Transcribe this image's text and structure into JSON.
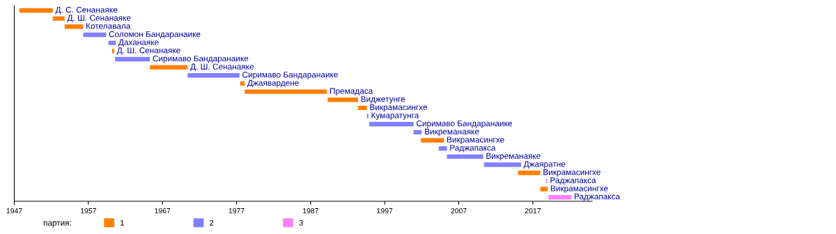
{
  "chart_data": {
    "type": "bar",
    "orientation": "horizontal",
    "categories": [
      "Д. С. Сенанаяке",
      "Д. Ш. Сенанаяке",
      "Котелавала",
      "Соломон Бандаранаике",
      "Даханаяке",
      "Д. Ш. Сенанаяке",
      "Сиримаво Бандаранаике",
      "Д. Ш. Сенанаяке",
      "Сиримаво Бандаранаике",
      "Джаявардене",
      "Премадаса",
      "Виджетунге",
      "Викрамасингхе",
      "Кумаратунга",
      "Сиримаво Бандаранаике",
      "Викреманаяке",
      "Викрамасингхе",
      "Раджапакса",
      "Викреманаяке",
      "Джаяратне",
      "Викрамасингхе",
      "Раджапакса",
      "Викрамасингхе",
      "Раджапакса"
    ],
    "series": [
      {
        "name": "1",
        "color": "#ff7f00",
        "base": [
          1947.7,
          1952.2,
          1953.8,
          null,
          null,
          1960.2,
          null,
          1965.3,
          null,
          1977.5,
          1978.1,
          1989.3,
          1993.4,
          null,
          null,
          null,
          2001.9,
          null,
          null,
          null,
          2015.0,
          null,
          2018.0,
          null
        ],
        "values": [
          4.5,
          1.6,
          2.5,
          null,
          null,
          0.3,
          null,
          5.1,
          null,
          0.6,
          11.1,
          4.1,
          1.2,
          null,
          null,
          null,
          3.1,
          null,
          null,
          null,
          3.0,
          null,
          1.0,
          null
        ]
      },
      {
        "name": "2",
        "color": "#8080ff",
        "base": [
          null,
          null,
          null,
          1956.3,
          1959.7,
          null,
          1960.6,
          null,
          1970.4,
          null,
          null,
          null,
          null,
          1994.6,
          1994.9,
          2000.9,
          null,
          2004.3,
          2005.4,
          2010.4,
          null,
          null,
          null,
          null
        ],
        "values": [
          null,
          null,
          null,
          3.1,
          1.0,
          null,
          4.7,
          null,
          7.0,
          null,
          null,
          null,
          null,
          0.2,
          6.0,
          1.1,
          null,
          1.1,
          4.9,
          5.0,
          null,
          null,
          null,
          null
        ]
      },
      {
        "name": "3",
        "color": "#ff80ff",
        "base": [
          null,
          null,
          null,
          null,
          null,
          null,
          null,
          null,
          null,
          null,
          null,
          null,
          null,
          null,
          null,
          null,
          null,
          null,
          null,
          null,
          null,
          2018.8,
          null,
          2019.1
        ],
        "values": [
          null,
          null,
          null,
          null,
          null,
          null,
          null,
          null,
          null,
          null,
          null,
          null,
          null,
          null,
          null,
          null,
          null,
          null,
          null,
          null,
          null,
          0.15,
          null,
          3.1
        ]
      }
    ],
    "xlim": [
      1947,
      2025
    ],
    "xticks": [
      1947,
      1957,
      1967,
      1977,
      1987,
      1997,
      2007,
      2017
    ],
    "legend": "bottom",
    "legend_title": "партия:",
    "tick_labels": "x",
    "grid": false
  }
}
